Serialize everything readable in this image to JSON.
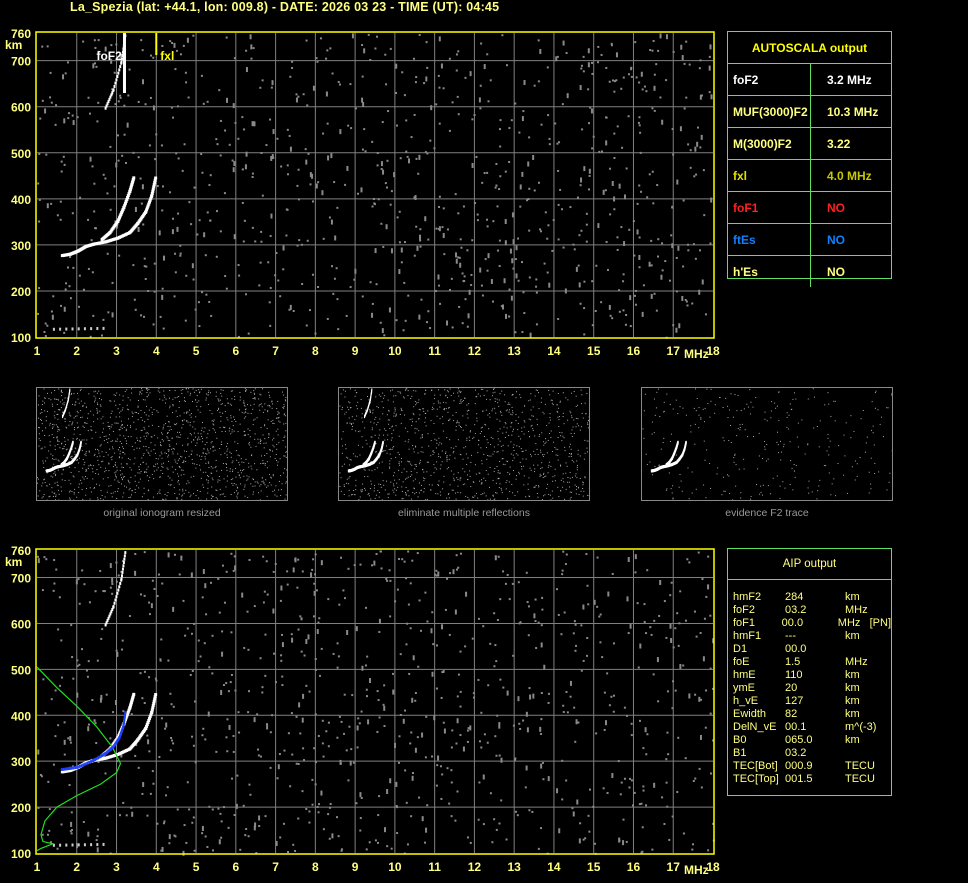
{
  "title": "La_Spezia (lat: +44.1, lon: 009.8) - DATE: 2026 03 23 - TIME (UT): 04:45",
  "colors": {
    "axis": "#ffff00",
    "grid": "#808080",
    "table_border": "#60e060",
    "label": "#ffff80",
    "foF1": "#ff2020",
    "ftEs": "#1080ff",
    "profile": "#20e020",
    "model": "#2040ff"
  },
  "chart_data": [
    {
      "type": "scatter",
      "name_panel": "ionogram",
      "xlim": [
        1,
        18
      ],
      "ylim": [
        100,
        760
      ],
      "x_ticks": [
        "1",
        "2",
        "3",
        "4",
        "5",
        "6",
        "7",
        "8",
        "9",
        "10",
        "11",
        "12",
        "13",
        "14",
        "15",
        "16",
        "17",
        "18"
      ],
      "y_ticks": [
        "100",
        "200",
        "300",
        "400",
        "500",
        "600",
        "700",
        "760"
      ],
      "xlabel": "MHz",
      "ylabel": "km",
      "grid": true,
      "annotations": [
        {
          "text": "foF2",
          "x": 3.2
        },
        {
          "text": "fxl",
          "x": 4.0
        }
      ],
      "traces": {
        "o_trace": [
          [
            1.6,
            280
          ],
          [
            1.8,
            283
          ],
          [
            2.0,
            290
          ],
          [
            2.2,
            300
          ],
          [
            2.4,
            305
          ],
          [
            2.7,
            310
          ],
          [
            3.0,
            318
          ],
          [
            3.3,
            330
          ],
          [
            3.5,
            350
          ],
          [
            3.7,
            375
          ],
          [
            3.85,
            410
          ],
          [
            3.95,
            450
          ]
        ],
        "x_trace": [
          [
            2.6,
            315
          ],
          [
            2.8,
            330
          ],
          [
            3.0,
            355
          ],
          [
            3.15,
            385
          ],
          [
            3.3,
            420
          ],
          [
            3.4,
            450
          ]
        ],
        "second_hop": [
          [
            2.7,
            600
          ],
          [
            2.9,
            640
          ],
          [
            3.1,
            700
          ],
          [
            3.2,
            760
          ]
        ],
        "es_trace": [
          [
            1.4,
            120
          ],
          [
            2.7,
            122
          ]
        ]
      }
    },
    {
      "type": "line",
      "name_panel": "aip",
      "xlim": [
        1,
        18
      ],
      "ylim": [
        100,
        760
      ],
      "x_ticks": [
        "1",
        "2",
        "3",
        "4",
        "5",
        "6",
        "7",
        "8",
        "9",
        "10",
        "11",
        "12",
        "13",
        "14",
        "15",
        "16",
        "17",
        "18"
      ],
      "y_ticks": [
        "100",
        "200",
        "300",
        "400",
        "500",
        "600",
        "700",
        "760"
      ],
      "xlabel": "MHz",
      "ylabel": "km",
      "grid": true,
      "profile": [
        [
          1.0,
          505
        ],
        [
          1.5,
          460
        ],
        [
          2.0,
          420
        ],
        [
          2.5,
          375
        ],
        [
          2.9,
          330
        ],
        [
          3.1,
          295
        ],
        [
          3.0,
          275
        ],
        [
          2.6,
          250
        ],
        [
          2.0,
          225
        ],
        [
          1.5,
          200
        ],
        [
          1.2,
          170
        ],
        [
          1.1,
          140
        ],
        [
          1.15,
          125
        ],
        [
          1.4,
          120
        ],
        [
          1.1,
          110
        ],
        [
          1.0,
          105
        ]
      ],
      "model_trace": [
        [
          1.6,
          285
        ],
        [
          2.0,
          290
        ],
        [
          2.4,
          305
        ],
        [
          2.7,
          320
        ],
        [
          2.9,
          335
        ],
        [
          3.05,
          355
        ],
        [
          3.15,
          380
        ],
        [
          3.2,
          410
        ]
      ]
    }
  ],
  "autoscala": {
    "header": "AUTOSCALA output",
    "rows": [
      {
        "key": "foF2",
        "value": "3.2 MHz",
        "kcolor": "#ffffff",
        "vcolor": "#ffffff"
      },
      {
        "key": "MUF(3000)F2",
        "value": "10.3 MHz",
        "kcolor": "#ffff80",
        "vcolor": "#ffff80"
      },
      {
        "key": "M(3000)F2",
        "value": "3.22",
        "kcolor": "#ffff80",
        "vcolor": "#ffff80"
      },
      {
        "key": "fxl",
        "value": "4.0 MHz",
        "kcolor": "#e0e000",
        "vcolor": "#c8c800"
      },
      {
        "key": "foF1",
        "value": "NO",
        "kcolor": "#ff2020",
        "vcolor": "#ff2020"
      },
      {
        "key": "ftEs",
        "value": "NO",
        "kcolor": "#1080ff",
        "vcolor": "#1080ff"
      },
      {
        "key": "h'Es",
        "value": "NO",
        "kcolor": "#ffff80",
        "vcolor": "#ffff80"
      }
    ]
  },
  "aip": {
    "header": "AIP output",
    "rows": [
      [
        "hmF2",
        "284",
        "km",
        ""
      ],
      [
        "foF2",
        "03.2",
        "MHz",
        ""
      ],
      [
        "foF1",
        "00.0",
        "MHz",
        "[PN]"
      ],
      [
        "hmF1",
        "---",
        "km",
        ""
      ],
      [
        "D1",
        "00.0",
        "",
        ""
      ],
      [
        "foE",
        "1.5",
        "MHz",
        ""
      ],
      [
        "hmE",
        "110",
        "km",
        ""
      ],
      [
        "ymE",
        "20",
        "km",
        ""
      ],
      [
        "h_vE",
        "127",
        "km",
        ""
      ],
      [
        "Ewidth",
        "82",
        "km",
        ""
      ],
      [
        "DelN_vE",
        "00.1",
        "m^(-3)",
        ""
      ],
      [
        "B0",
        "065.0",
        "km",
        ""
      ],
      [
        "B1",
        "03.2",
        "",
        ""
      ],
      [
        "TEC[Bot]",
        "000.9",
        "TECU",
        ""
      ],
      [
        "TEC[Top]",
        "001.5",
        "TECU",
        ""
      ]
    ]
  },
  "thumbnails": [
    {
      "label": "original ionogram resized"
    },
    {
      "label": "eliminate multiple reflections"
    },
    {
      "label": "evidence F2 trace"
    }
  ]
}
